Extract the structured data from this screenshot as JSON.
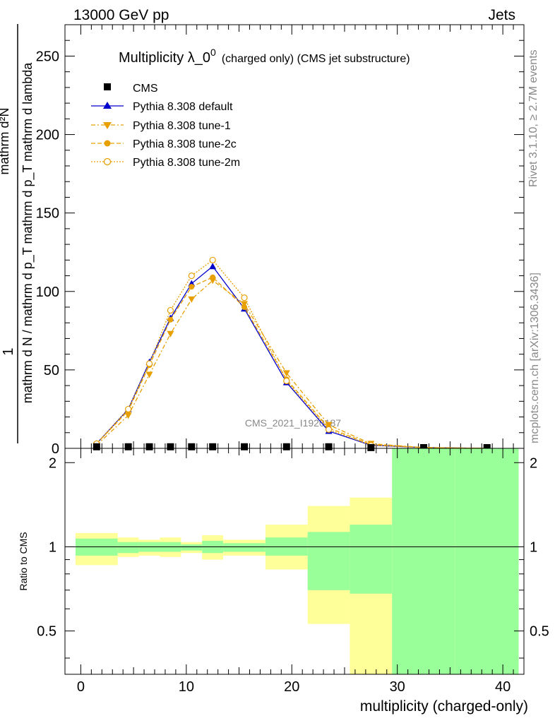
{
  "header": {
    "left": "13000 GeV pp",
    "right": "Jets"
  },
  "side": {
    "rivet": "Rivet 3.1.10, ≥ 2.7M events",
    "mcplots": "mcplots.cern.ch [arXiv:1306.3436]"
  },
  "colors": {
    "default": "#0000cc",
    "tunes": "#e8a000",
    "band_inner": "#99ff99",
    "band_outer": "#ffff99",
    "data": "#000000"
  },
  "chart_data": [
    {
      "type": "line",
      "title_main": "Multiplicity λ_0",
      "title_sup": "0",
      "title_note": "(charged only) (CMS jet substructure)",
      "watermark": "CMS_2021_I1920187",
      "ylabel_line1": "1",
      "ylabel_line2": "mathrm d N / mathrm d p_T mathrm d p_T mathrm d lambda",
      "ylabel_line3": "mathrm d²N",
      "xlim": [
        -1.5,
        42
      ],
      "ylim": [
        0,
        270
      ],
      "yticks": [
        0,
        50,
        100,
        150,
        200,
        250
      ],
      "legend_position": "top-left",
      "legend": {
        "cms": "CMS",
        "default": "Pythia 8.308 default",
        "tune1": "Pythia 8.308 tune-1",
        "tune2c": "Pythia 8.308 tune-2c",
        "tune2m": "Pythia 8.308 tune-2m"
      },
      "cms": {
        "name": "CMS",
        "x": [
          1.5,
          4.5,
          6.5,
          8.5,
          10.5,
          12.5,
          15.5,
          19.5,
          23.5,
          27.5,
          32.5,
          38.5
        ],
        "y": [
          1,
          1,
          1,
          1,
          1,
          1,
          1,
          1,
          1,
          0.5,
          0.3,
          0.2
        ]
      },
      "series": [
        {
          "name": "Pythia 8.308 default",
          "key": "default",
          "x": [
            1.5,
            4.5,
            6.5,
            8.5,
            10.5,
            12.5,
            15.5,
            19.5,
            23.5,
            27.5,
            32.5,
            38.5
          ],
          "y": [
            3,
            25,
            55,
            83,
            105,
            116,
            89,
            42,
            11,
            2,
            0.5,
            0
          ]
        },
        {
          "name": "Pythia 8.308 tune-1",
          "key": "tune1",
          "x": [
            1.5,
            4.5,
            6.5,
            8.5,
            10.5,
            12.5,
            15.5,
            19.5,
            23.5,
            27.5,
            32.5,
            38.5
          ],
          "y": [
            2,
            21,
            47,
            73,
            95,
            107,
            92,
            48,
            15,
            3,
            0.5,
            0
          ]
        },
        {
          "name": "Pythia 8.308 tune-2c",
          "key": "tune2c",
          "x": [
            1.5,
            4.5,
            6.5,
            8.5,
            10.5,
            12.5,
            15.5,
            19.5,
            23.5,
            27.5,
            32.5,
            38.5
          ],
          "y": [
            3,
            24,
            53,
            82,
            103,
            109,
            90,
            44,
            13,
            2.5,
            0.5,
            0
          ]
        },
        {
          "name": "Pythia 8.308 tune-2m",
          "key": "tune2m",
          "x": [
            1.5,
            4.5,
            6.5,
            8.5,
            10.5,
            12.5,
            15.5,
            19.5,
            23.5,
            27.5,
            32.5,
            38.5
          ],
          "y": [
            3,
            25,
            54,
            88,
            110,
            120,
            96,
            43,
            12,
            2,
            0.5,
            0
          ]
        }
      ]
    },
    {
      "type": "area",
      "ylabel": "Ratio to CMS",
      "xlabel": "multiplicity (charged-only)",
      "xlim": [
        -1.5,
        42
      ],
      "ylim": [
        0.35,
        2.25
      ],
      "xticks": [
        0,
        10,
        20,
        30,
        40
      ],
      "yticks": [
        0.5,
        1,
        2
      ],
      "bins": [
        {
          "lo": -0.5,
          "hi": 3.5,
          "inner": [
            0.93,
            1.07
          ],
          "outer": [
            0.86,
            1.12
          ]
        },
        {
          "lo": 3.5,
          "hi": 5.5,
          "inner": [
            0.95,
            1.04
          ],
          "outer": [
            0.92,
            1.08
          ]
        },
        {
          "lo": 5.5,
          "hi": 7.5,
          "inner": [
            0.96,
            1.04
          ],
          "outer": [
            0.93,
            1.06
          ]
        },
        {
          "lo": 7.5,
          "hi": 9.5,
          "inner": [
            0.96,
            1.04
          ],
          "outer": [
            0.92,
            1.08
          ]
        },
        {
          "lo": 9.5,
          "hi": 11.5,
          "inner": [
            0.97,
            1.02
          ],
          "outer": [
            0.95,
            1.04
          ]
        },
        {
          "lo": 11.5,
          "hi": 13.5,
          "inner": [
            0.95,
            1.05
          ],
          "outer": [
            0.9,
            1.1
          ]
        },
        {
          "lo": 13.5,
          "hi": 17.5,
          "inner": [
            0.96,
            1.03
          ],
          "outer": [
            0.93,
            1.06
          ]
        },
        {
          "lo": 17.5,
          "hi": 21.5,
          "inner": [
            0.93,
            1.08
          ],
          "outer": [
            0.83,
            1.2
          ]
        },
        {
          "lo": 21.5,
          "hi": 25.5,
          "inner": [
            0.7,
            1.13
          ],
          "outer": [
            0.53,
            1.4
          ]
        },
        {
          "lo": 25.5,
          "hi": 29.5,
          "inner": [
            0.68,
            1.2
          ],
          "outer": [
            0.35,
            1.5
          ]
        },
        {
          "lo": 29.5,
          "hi": 35.5,
          "inner": [
            0.35,
            2.25
          ],
          "outer": [
            0.35,
            2.25
          ]
        },
        {
          "lo": 35.5,
          "hi": 41.5,
          "inner": [
            0.35,
            2.25
          ],
          "outer": [
            0.35,
            2.25
          ]
        }
      ]
    }
  ]
}
